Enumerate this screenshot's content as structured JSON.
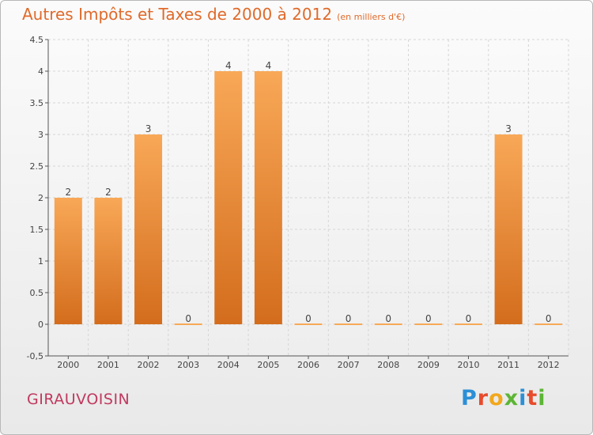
{
  "header": {
    "title": "Autres Impôts et Taxes de 2000 à 2012",
    "unit": "(en milliers d'€)"
  },
  "footer": {
    "commune": "GIRAUVOISIN",
    "brand_letters": [
      "P",
      "r",
      "o",
      "x",
      "i",
      "t",
      "i"
    ]
  },
  "colors": {
    "bar_light": "#f8a857",
    "bar_dark": "#d36d1d",
    "title": "#e06a2a",
    "commune": "#c0395f"
  },
  "chart_data": {
    "type": "bar",
    "categories": [
      "2000",
      "2001",
      "2002",
      "2003",
      "2004",
      "2005",
      "2006",
      "2007",
      "2008",
      "2009",
      "2010",
      "2011",
      "2012"
    ],
    "values": [
      2,
      2,
      3,
      0,
      4,
      4,
      0,
      0,
      0,
      0,
      0,
      3,
      0
    ],
    "value_labels": [
      "2",
      "2",
      "3",
      "0",
      "4",
      "4",
      "0",
      "0",
      "0",
      "0",
      "0",
      "3",
      "0"
    ],
    "title": "Autres Impôts et Taxes de 2000 à 2012",
    "xlabel": "",
    "ylabel": "",
    "ylim": [
      -0.5,
      4.5
    ],
    "yticks": [
      -0.5,
      0,
      0.5,
      1,
      1.5,
      2,
      2.5,
      3,
      3.5,
      4,
      4.5
    ],
    "ytick_labels": [
      "-0,5",
      "0",
      "0.5",
      "1",
      "1.5",
      "2",
      "2.5",
      "3",
      "3.5",
      "4",
      "4.5"
    ],
    "grid": true
  }
}
